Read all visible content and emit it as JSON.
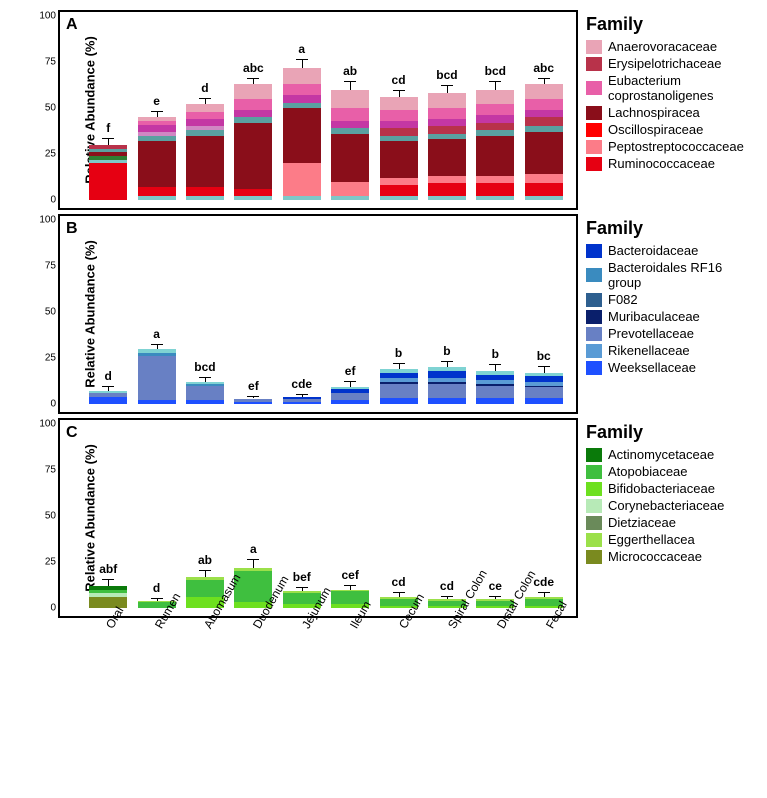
{
  "ylabel": "Relative Abundance (%)",
  "categories": [
    "Oral",
    "Rumen",
    "Abomasum",
    "Duodenum",
    "Jejunum",
    "Ileum",
    "Cecum",
    "Spiral Colon",
    "Distal Colon",
    "Fecal"
  ],
  "yticks": [
    0,
    25,
    50,
    75,
    100
  ],
  "panels": [
    {
      "letter": "A",
      "legend_title": "Family",
      "families": [
        {
          "name": "Anaerovoracaceae",
          "color": "#e9a4b6"
        },
        {
          "name": "Erysipelotrichaceae",
          "color": "#b8324a"
        },
        {
          "name": "Eubacterium coprostanoligenes",
          "color": "#e85fa8"
        },
        {
          "name": "Lachnospiracea",
          "color": "#8a0e1a"
        },
        {
          "name": "Oscillospiraceae",
          "color": "#ff0000"
        },
        {
          "name": "Peptostreptococcaceae",
          "color": "#fc7c88"
        },
        {
          "name": "Ruminococcaceae",
          "color": "#e60012"
        },
        {
          "name": "other1",
          "color": "#7ec8c8",
          "hideLegend": true
        },
        {
          "name": "other2",
          "color": "#5aa0a0",
          "hideLegend": true
        },
        {
          "name": "other3",
          "color": "#d087c3",
          "hideLegend": true
        },
        {
          "name": "other4",
          "color": "#c437a4",
          "hideLegend": true
        },
        {
          "name": "other5",
          "color": "#2e7d32",
          "hideLegend": true
        }
      ],
      "totals": [
        30,
        45,
        52,
        63,
        72,
        60,
        56,
        58,
        60,
        63
      ],
      "err": [
        3,
        3,
        3,
        3,
        4,
        4,
        3,
        4,
        4,
        3
      ],
      "sig": [
        "f",
        "e",
        "d",
        "abc",
        "a",
        "ab",
        "cd",
        "bcd",
        "bcd",
        "abc"
      ],
      "stacks": [
        [
          {
            "f": 6,
            "v": 20
          },
          {
            "f": 7,
            "v": 2
          },
          {
            "f": 11,
            "v": 2
          },
          {
            "f": 3,
            "v": 2
          },
          {
            "f": 8,
            "v": 2
          },
          {
            "f": 1,
            "v": 2
          }
        ],
        [
          {
            "f": 7,
            "v": 2
          },
          {
            "f": 6,
            "v": 5
          },
          {
            "f": 3,
            "v": 25
          },
          {
            "f": 8,
            "v": 3
          },
          {
            "f": 9,
            "v": 2
          },
          {
            "f": 10,
            "v": 4
          },
          {
            "f": 2,
            "v": 2
          },
          {
            "f": 0,
            "v": 2
          }
        ],
        [
          {
            "f": 7,
            "v": 2
          },
          {
            "f": 6,
            "v": 5
          },
          {
            "f": 3,
            "v": 28
          },
          {
            "f": 8,
            "v": 3
          },
          {
            "f": 9,
            "v": 2
          },
          {
            "f": 10,
            "v": 4
          },
          {
            "f": 2,
            "v": 4
          },
          {
            "f": 0,
            "v": 4
          }
        ],
        [
          {
            "f": 7,
            "v": 2
          },
          {
            "f": 6,
            "v": 4
          },
          {
            "f": 3,
            "v": 36
          },
          {
            "f": 8,
            "v": 3
          },
          {
            "f": 10,
            "v": 4
          },
          {
            "f": 2,
            "v": 6
          },
          {
            "f": 0,
            "v": 8
          }
        ],
        [
          {
            "f": 7,
            "v": 2
          },
          {
            "f": 5,
            "v": 18
          },
          {
            "f": 3,
            "v": 30
          },
          {
            "f": 8,
            "v": 3
          },
          {
            "f": 10,
            "v": 4
          },
          {
            "f": 2,
            "v": 6
          },
          {
            "f": 0,
            "v": 9
          }
        ],
        [
          {
            "f": 7,
            "v": 2
          },
          {
            "f": 5,
            "v": 8
          },
          {
            "f": 3,
            "v": 26
          },
          {
            "f": 8,
            "v": 3
          },
          {
            "f": 10,
            "v": 4
          },
          {
            "f": 2,
            "v": 7
          },
          {
            "f": 0,
            "v": 10
          }
        ],
        [
          {
            "f": 7,
            "v": 2
          },
          {
            "f": 6,
            "v": 6
          },
          {
            "f": 5,
            "v": 4
          },
          {
            "f": 3,
            "v": 20
          },
          {
            "f": 8,
            "v": 3
          },
          {
            "f": 1,
            "v": 4
          },
          {
            "f": 10,
            "v": 4
          },
          {
            "f": 2,
            "v": 6
          },
          {
            "f": 0,
            "v": 7
          }
        ],
        [
          {
            "f": 7,
            "v": 2
          },
          {
            "f": 6,
            "v": 7
          },
          {
            "f": 5,
            "v": 4
          },
          {
            "f": 3,
            "v": 20
          },
          {
            "f": 8,
            "v": 3
          },
          {
            "f": 1,
            "v": 4
          },
          {
            "f": 10,
            "v": 4
          },
          {
            "f": 2,
            "v": 6
          },
          {
            "f": 0,
            "v": 8
          }
        ],
        [
          {
            "f": 7,
            "v": 2
          },
          {
            "f": 6,
            "v": 7
          },
          {
            "f": 5,
            "v": 4
          },
          {
            "f": 3,
            "v": 22
          },
          {
            "f": 8,
            "v": 3
          },
          {
            "f": 1,
            "v": 4
          },
          {
            "f": 10,
            "v": 4
          },
          {
            "f": 2,
            "v": 6
          },
          {
            "f": 0,
            "v": 8
          }
        ],
        [
          {
            "f": 7,
            "v": 2
          },
          {
            "f": 6,
            "v": 7
          },
          {
            "f": 5,
            "v": 5
          },
          {
            "f": 3,
            "v": 23
          },
          {
            "f": 8,
            "v": 3
          },
          {
            "f": 1,
            "v": 5
          },
          {
            "f": 10,
            "v": 4
          },
          {
            "f": 2,
            "v": 6
          },
          {
            "f": 0,
            "v": 8
          }
        ]
      ]
    },
    {
      "letter": "B",
      "legend_title": "Family",
      "families": [
        {
          "name": "Bacteroidaceae",
          "color": "#0033cc"
        },
        {
          "name": "Bacteroidales RF16 group",
          "color": "#3a8bbf"
        },
        {
          "name": "F082",
          "color": "#2e5f8f"
        },
        {
          "name": "Muribaculaceae",
          "color": "#0a1f6b"
        },
        {
          "name": "Prevotellaceae",
          "color": "#6880c4"
        },
        {
          "name": "Rikenellaceae",
          "color": "#5a9bd5"
        },
        {
          "name": "Weeksellaceae",
          "color": "#1e50ff"
        },
        {
          "name": "otherB1",
          "color": "#7fd3d3",
          "hideLegend": true
        },
        {
          "name": "otherB2",
          "color": "#bfe3e3",
          "hideLegend": true
        }
      ],
      "totals": [
        7,
        30,
        12,
        3,
        4,
        9,
        19,
        20,
        18,
        17
      ],
      "err": [
        2,
        2,
        2,
        1,
        1,
        3,
        3,
        3,
        3,
        3
      ],
      "sig": [
        "d",
        "a",
        "bcd",
        "ef",
        "cde",
        "ef",
        "b",
        "b",
        "b",
        "bc"
      ],
      "stacks": [
        [
          {
            "f": 6,
            "v": 4
          },
          {
            "f": 4,
            "v": 2
          },
          {
            "f": 7,
            "v": 1
          }
        ],
        [
          {
            "f": 6,
            "v": 2
          },
          {
            "f": 4,
            "v": 24
          },
          {
            "f": 1,
            "v": 2
          },
          {
            "f": 7,
            "v": 2
          }
        ],
        [
          {
            "f": 6,
            "v": 2
          },
          {
            "f": 4,
            "v": 8
          },
          {
            "f": 1,
            "v": 1
          },
          {
            "f": 7,
            "v": 1
          }
        ],
        [
          {
            "f": 6,
            "v": 1
          },
          {
            "f": 4,
            "v": 2
          }
        ],
        [
          {
            "f": 6,
            "v": 1
          },
          {
            "f": 4,
            "v": 2
          },
          {
            "f": 0,
            "v": 1
          }
        ],
        [
          {
            "f": 6,
            "v": 2
          },
          {
            "f": 4,
            "v": 4
          },
          {
            "f": 0,
            "v": 2
          },
          {
            "f": 7,
            "v": 1
          }
        ],
        [
          {
            "f": 6,
            "v": 3
          },
          {
            "f": 4,
            "v": 8
          },
          {
            "f": 3,
            "v": 1
          },
          {
            "f": 5,
            "v": 2
          },
          {
            "f": 0,
            "v": 3
          },
          {
            "f": 7,
            "v": 2
          }
        ],
        [
          {
            "f": 6,
            "v": 3
          },
          {
            "f": 4,
            "v": 8
          },
          {
            "f": 3,
            "v": 1
          },
          {
            "f": 5,
            "v": 2
          },
          {
            "f": 0,
            "v": 4
          },
          {
            "f": 7,
            "v": 2
          }
        ],
        [
          {
            "f": 6,
            "v": 3
          },
          {
            "f": 4,
            "v": 7
          },
          {
            "f": 3,
            "v": 1
          },
          {
            "f": 5,
            "v": 2
          },
          {
            "f": 0,
            "v": 3
          },
          {
            "f": 7,
            "v": 2
          }
        ],
        [
          {
            "f": 6,
            "v": 3
          },
          {
            "f": 4,
            "v": 6
          },
          {
            "f": 3,
            "v": 1
          },
          {
            "f": 5,
            "v": 2
          },
          {
            "f": 0,
            "v": 3
          },
          {
            "f": 7,
            "v": 2
          }
        ]
      ]
    },
    {
      "letter": "C",
      "legend_title": "Family",
      "families": [
        {
          "name": "Actinomycetaceae",
          "color": "#0a7a0a"
        },
        {
          "name": "Atopobiaceae",
          "color": "#3fbf3f"
        },
        {
          "name": "Bifidobacteriaceae",
          "color": "#6de01f"
        },
        {
          "name": "Corynebacteriaceae",
          "color": "#b7eab7"
        },
        {
          "name": "Dietziaceae",
          "color": "#6a8a5a"
        },
        {
          "name": "Eggerthellacea",
          "color": "#9be04a"
        },
        {
          "name": "Micrococcaceae",
          "color": "#7a8a1f"
        }
      ],
      "totals": [
        12,
        4,
        17,
        22,
        9,
        10,
        6,
        5,
        5,
        6
      ],
      "err": [
        3,
        1,
        3,
        4,
        2,
        2,
        2,
        1,
        1,
        2
      ],
      "sig": [
        "abf",
        "d",
        "ab",
        "a",
        "bef",
        "cef",
        "cd",
        "cd",
        "ce",
        "cde"
      ],
      "stacks": [
        [
          {
            "f": 6,
            "v": 6
          },
          {
            "f": 3,
            "v": 2
          },
          {
            "f": 1,
            "v": 2
          },
          {
            "f": 0,
            "v": 2
          }
        ],
        [
          {
            "f": 1,
            "v": 3
          },
          {
            "f": 5,
            "v": 1
          }
        ],
        [
          {
            "f": 2,
            "v": 6
          },
          {
            "f": 1,
            "v": 9
          },
          {
            "f": 5,
            "v": 2
          }
        ],
        [
          {
            "f": 2,
            "v": 3
          },
          {
            "f": 1,
            "v": 17
          },
          {
            "f": 5,
            "v": 2
          }
        ],
        [
          {
            "f": 2,
            "v": 2
          },
          {
            "f": 1,
            "v": 6
          },
          {
            "f": 5,
            "v": 1
          }
        ],
        [
          {
            "f": 2,
            "v": 2
          },
          {
            "f": 1,
            "v": 7
          },
          {
            "f": 5,
            "v": 1
          }
        ],
        [
          {
            "f": 2,
            "v": 1
          },
          {
            "f": 1,
            "v": 4
          },
          {
            "f": 5,
            "v": 1
          }
        ],
        [
          {
            "f": 2,
            "v": 1
          },
          {
            "f": 1,
            "v": 3
          },
          {
            "f": 5,
            "v": 1
          }
        ],
        [
          {
            "f": 2,
            "v": 1
          },
          {
            "f": 1,
            "v": 3
          },
          {
            "f": 5,
            "v": 1
          }
        ],
        [
          {
            "f": 2,
            "v": 1
          },
          {
            "f": 1,
            "v": 4
          },
          {
            "f": 5,
            "v": 1
          }
        ]
      ]
    }
  ]
}
